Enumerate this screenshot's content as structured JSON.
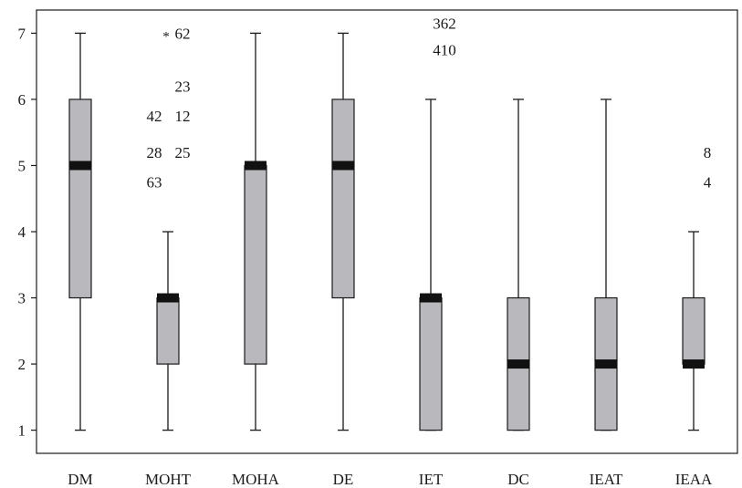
{
  "chart_data": {
    "type": "boxplot",
    "title": "",
    "xlabel": "",
    "ylabel": "",
    "ylim": [
      0.65,
      7.35
    ],
    "yticks": [
      1,
      2,
      3,
      4,
      5,
      6,
      7
    ],
    "grid": false,
    "categories": [
      "DM",
      "MOHT",
      "MOHA",
      "DE",
      "IET",
      "DC",
      "IEAT",
      "IEAA"
    ],
    "boxes": [
      {
        "category": "DM",
        "whisker_low": 1,
        "q1": 3,
        "median": 5,
        "q3": 6,
        "whisker_high": 7,
        "outliers": []
      },
      {
        "category": "MOHT",
        "whisker_low": 1,
        "q1": 2,
        "median": 3,
        "q3": 3,
        "whisker_high": 4,
        "outliers": [
          {
            "value": 7,
            "label": "62",
            "extreme": true
          },
          {
            "value": 6.2,
            "label": "23"
          },
          {
            "value": 5.75,
            "label": "42"
          },
          {
            "value": 5.75,
            "label": "12"
          },
          {
            "value": 5.2,
            "label": "28"
          },
          {
            "value": 5.2,
            "label": "25"
          },
          {
            "value": 4.75,
            "label": "63"
          }
        ]
      },
      {
        "category": "MOHA",
        "whisker_low": 1,
        "q1": 2,
        "median": 5,
        "q3": 5,
        "whisker_high": 7,
        "outliers": []
      },
      {
        "category": "DE",
        "whisker_low": 1,
        "q1": 3,
        "median": 5,
        "q3": 6,
        "whisker_high": 7,
        "outliers": []
      },
      {
        "category": "IET",
        "whisker_low": 1,
        "q1": 1,
        "median": 3,
        "q3": 3,
        "whisker_high": 6,
        "outliers": [
          {
            "value": 7.15,
            "label": "362"
          },
          {
            "value": 6.75,
            "label": "410"
          }
        ]
      },
      {
        "category": "DC",
        "whisker_low": 1,
        "q1": 1,
        "median": 2,
        "q3": 3,
        "whisker_high": 6,
        "outliers": []
      },
      {
        "category": "IEAT",
        "whisker_low": 1,
        "q1": 1,
        "median": 2,
        "q3": 3,
        "whisker_high": 6,
        "outliers": []
      },
      {
        "category": "IEAA",
        "whisker_low": 1,
        "q1": 2,
        "median": 2,
        "q3": 3,
        "whisker_high": 4,
        "outliers": [
          {
            "value": 5.2,
            "label": "8"
          },
          {
            "value": 4.75,
            "label": "4"
          }
        ]
      }
    ],
    "colors": {
      "box_fill": "#b9b9bd",
      "median": "#111111",
      "line": "#1a1a1a"
    }
  }
}
